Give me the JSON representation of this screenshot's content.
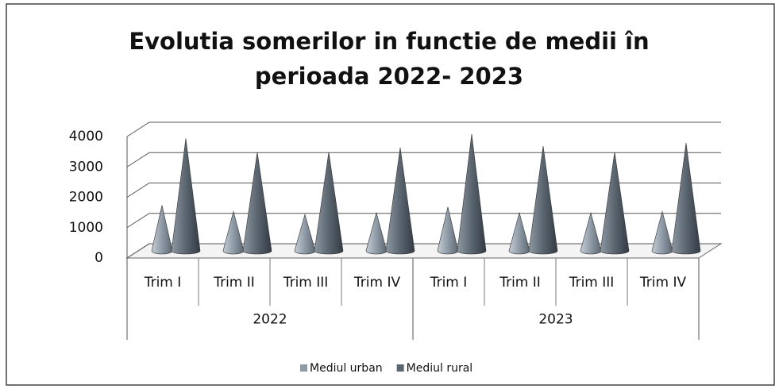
{
  "chart_data": {
    "type": "cone",
    "title": "Evolutia somerilor in functie de medii în perioada 2022- 2023",
    "categories": [
      "Trim I",
      "Trim II",
      "Trim III",
      "Trim IV",
      "Trim I",
      "Trim II",
      "Trim III",
      "Trim IV"
    ],
    "groups": [
      "2022",
      "2023"
    ],
    "series": [
      {
        "name": "Mediul urban",
        "color": "#8e9aa6",
        "values": [
          1500,
          1300,
          1200,
          1250,
          1450,
          1250,
          1250,
          1300
        ]
      },
      {
        "name": "Mediul rural",
        "color": "#5a6570",
        "values": [
          3700,
          3250,
          3250,
          3400,
          3850,
          3450,
          3250,
          3550
        ]
      }
    ],
    "ylim": [
      0,
      4000
    ],
    "yticks": [
      0,
      1000,
      2000,
      3000,
      4000
    ],
    "grid": true,
    "legend": "bottom"
  }
}
